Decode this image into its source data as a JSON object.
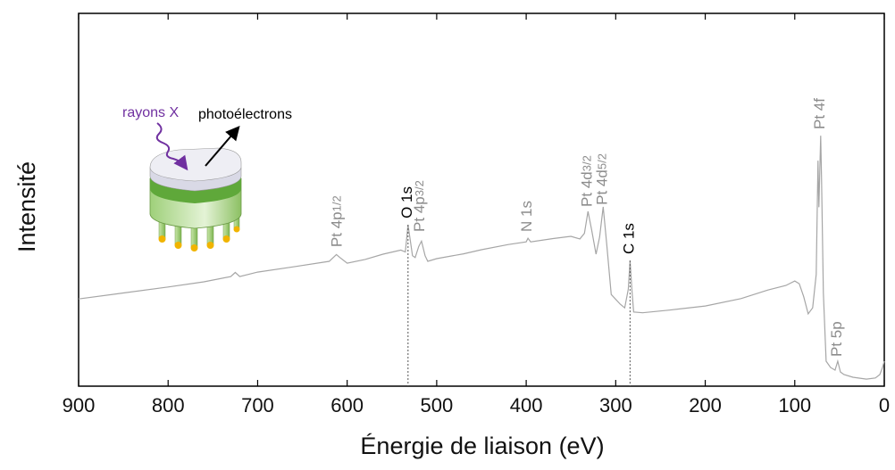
{
  "chart_data": {
    "type": "line",
    "xlabel": "Énergie de liaison (eV)",
    "ylabel": "Intensité",
    "xlim": [
      900,
      0
    ],
    "ylim": [
      0,
      100
    ],
    "xticks": [
      900,
      800,
      700,
      600,
      500,
      400,
      300,
      200,
      100,
      0
    ],
    "color": "#a6a6a6",
    "x": [
      900,
      850,
      800,
      760,
      730,
      725,
      720,
      700,
      660,
      620,
      612,
      608,
      600,
      580,
      560,
      540,
      535,
      532,
      530,
      527,
      524,
      520,
      517,
      513,
      510,
      500,
      470,
      450,
      420,
      400,
      398,
      395,
      370,
      350,
      340,
      335,
      331,
      327,
      322,
      318,
      314,
      310,
      305,
      295,
      290,
      286,
      284,
      282,
      280,
      270,
      240,
      200,
      160,
      130,
      110,
      100,
      95,
      90,
      85,
      80,
      76,
      74,
      73,
      71,
      70,
      68,
      65,
      60,
      55,
      52,
      49,
      45,
      35,
      20,
      10,
      5,
      2,
      0
    ],
    "values": [
      23.4,
      25.0,
      26.6,
      28.0,
      29.4,
      30.5,
      29.4,
      30.6,
      32.0,
      33.5,
      35.3,
      34.5,
      33.0,
      34.0,
      35.4,
      36.5,
      36.0,
      43.3,
      40.0,
      35.0,
      34.5,
      37.5,
      38.9,
      35.0,
      33.5,
      34.2,
      35.5,
      36.6,
      38.0,
      38.7,
      39.7,
      38.7,
      39.6,
      40.2,
      39.5,
      41.0,
      46.9,
      42.0,
      35.4,
      40.0,
      48.1,
      38.0,
      24.6,
      22.0,
      21.0,
      26.0,
      33.7,
      26.0,
      19.9,
      19.7,
      20.4,
      21.5,
      23.5,
      25.8,
      27.0,
      28.2,
      27.5,
      24.0,
      19.4,
      21.0,
      30.0,
      60.5,
      48.0,
      67.2,
      55.0,
      25.0,
      6.7,
      5.0,
      4.3,
      6.7,
      3.8,
      3.1,
      2.4,
      1.9,
      2.2,
      3.1,
      5.0,
      6.7
    ],
    "annotations": [
      {
        "text": "Pt 4p",
        "sub": "1/2",
        "x": 610,
        "y": 37.3,
        "color": "#8c8c8c"
      },
      {
        "text": "O 1s",
        "x": 532,
        "y": 45.0,
        "color": "#000000",
        "guide": 43.3
      },
      {
        "text": "Pt 4p",
        "sub": "3/2",
        "x": 518,
        "y": 41.4,
        "color": "#8c8c8c"
      },
      {
        "text": "N 1s",
        "x": 398,
        "y": 41.4,
        "color": "#8c8c8c"
      },
      {
        "text": "Pt 4d",
        "sub": "3/2",
        "x": 331,
        "y": 48.1,
        "color": "#8c8c8c"
      },
      {
        "text": "Pt 4d",
        "sub": "5/2",
        "x": 314,
        "y": 48.6,
        "color": "#8c8c8c"
      },
      {
        "text": "C 1s",
        "x": 284,
        "y": 35.4,
        "color": "#000000",
        "guide": 33.7
      },
      {
        "text": "Pt 4f",
        "x": 71,
        "y": 68.9,
        "color": "#8c8c8c"
      },
      {
        "text": "Pt 5p",
        "x": 52,
        "y": 7.9,
        "color": "#8c8c8c"
      }
    ],
    "inset": {
      "xray_label": "rayons X",
      "photo_label": "photoélectrons"
    }
  }
}
